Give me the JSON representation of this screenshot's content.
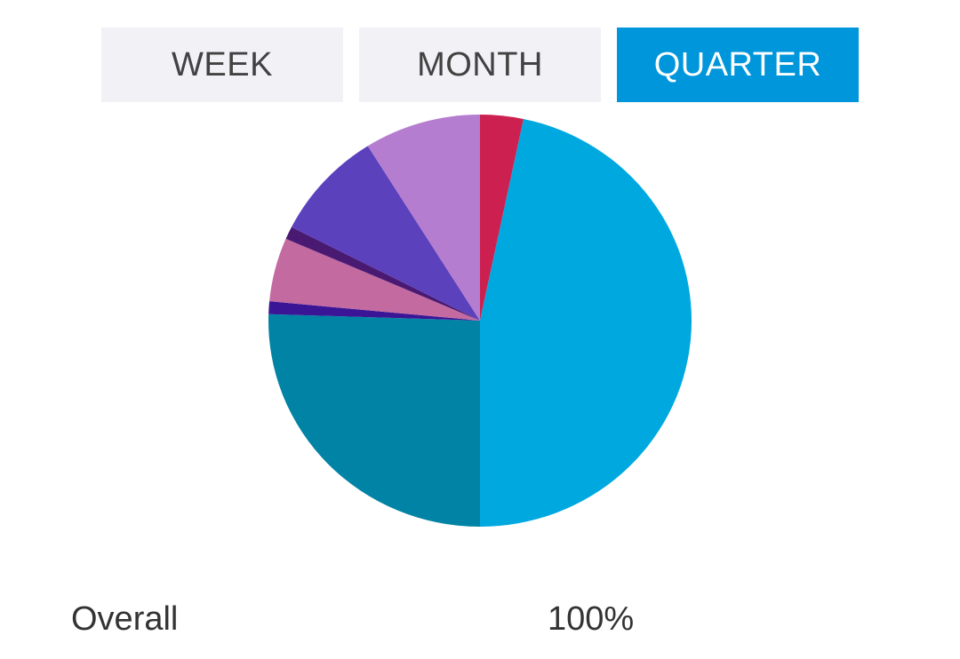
{
  "tabs": [
    {
      "label": "WEEK",
      "active": false
    },
    {
      "label": "MONTH",
      "active": false
    },
    {
      "label": "QUARTER",
      "active": true
    }
  ],
  "colors": {
    "tab_active_bg": "#0096db",
    "tab_inactive_bg": "#f1f1f6"
  },
  "chart_data": {
    "type": "pie",
    "start_angle_deg": 0,
    "direction": "clockwise",
    "slices": [
      {
        "value": 3.3,
        "color": "#cc2150"
      },
      {
        "value": 46.7,
        "color": "#00a8e0"
      },
      {
        "value": 25.5,
        "color": "#0083a4"
      },
      {
        "value": 1.0,
        "color": "#3a1697"
      },
      {
        "value": 5.0,
        "color": "#c36aa0"
      },
      {
        "value": 1.0,
        "color": "#4a1a73"
      },
      {
        "value": 8.6,
        "color": "#5c41bd"
      },
      {
        "value": 8.9,
        "color": "#b57dcf"
      }
    ]
  },
  "summary": {
    "label": "Overall",
    "value": "100%"
  }
}
